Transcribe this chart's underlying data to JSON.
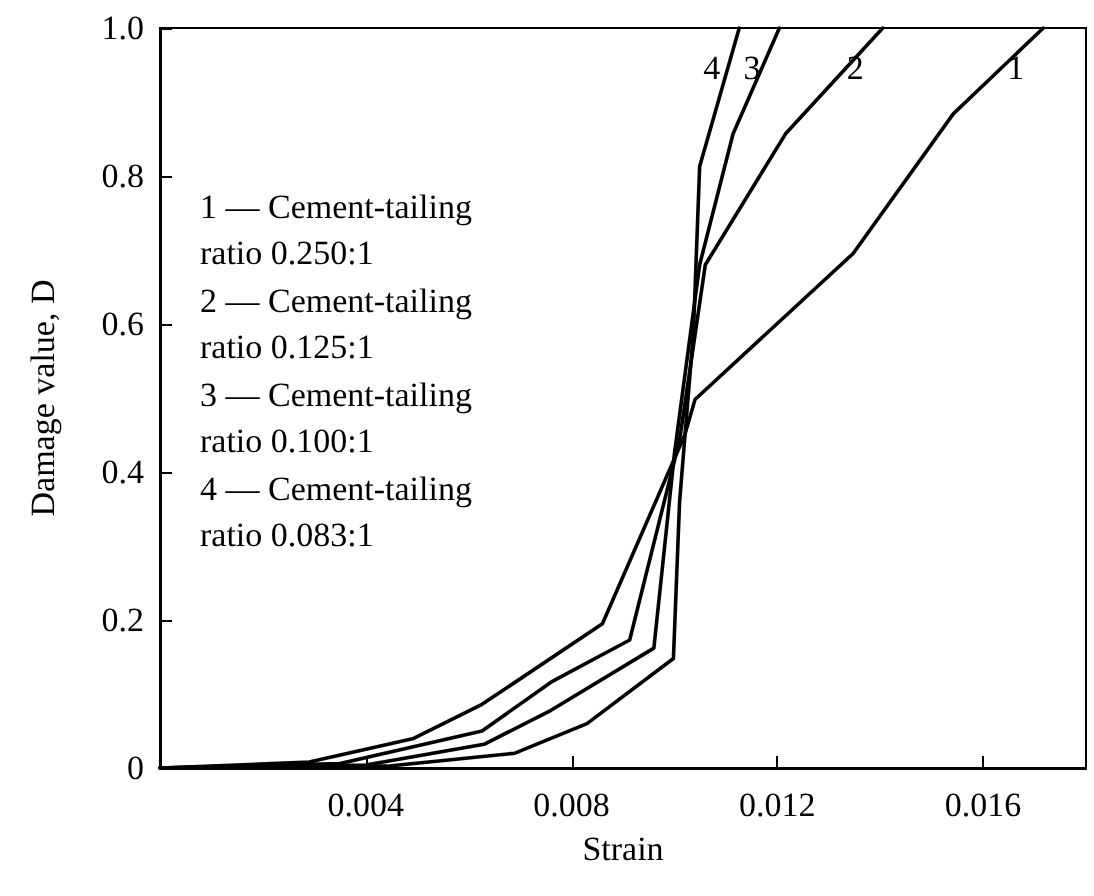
{
  "chart_data": {
    "type": "line",
    "xlabel": "Strain",
    "ylabel": "Damage value, D",
    "xlim": [
      0,
      0.018
    ],
    "xticks": [
      0.004,
      0.008,
      0.012,
      0.016
    ],
    "ylim": [
      0,
      1
    ],
    "yticks": [
      0,
      0.2,
      0.4,
      0.6,
      0.8,
      {
        "value": 1,
        "label": "1.0"
      }
    ],
    "grid": false,
    "marker": "none",
    "line_style": "solid",
    "series": [
      {
        "name": "1",
        "color": "#000000",
        "x": [
          0,
          0.0029,
          0.00493,
          0.00626,
          0.0086,
          0.0102,
          0.0104,
          0.01347,
          0.01542,
          0.01717
        ],
        "values": [
          0,
          0.008,
          0.04,
          0.086,
          0.195,
          0.45,
          0.498,
          0.695,
          0.884,
          1.0
        ]
      },
      {
        "name": "2",
        "color": "#000000",
        "x": [
          0,
          0.0035,
          0.00626,
          0.0076,
          0.00913,
          0.0101,
          0.0106,
          0.01216,
          0.01405
        ],
        "values": [
          0,
          0.006,
          0.05,
          0.116,
          0.173,
          0.443,
          0.68,
          0.857,
          1.0
        ]
      },
      {
        "name": "3",
        "color": "#000000",
        "x": [
          0,
          0.004,
          0.0063,
          0.0076,
          0.0096,
          0.01,
          0.01049,
          0.01114,
          0.01204
        ],
        "values": [
          0,
          0.004,
          0.032,
          0.078,
          0.162,
          0.425,
          0.68,
          0.857,
          1.0
        ]
      },
      {
        "name": "4",
        "color": "#000000",
        "x": [
          0,
          0.0045,
          0.0069,
          0.0083,
          0.00998,
          0.0101,
          0.01037,
          0.01049,
          0.01126
        ],
        "values": [
          0,
          0.003,
          0.02,
          0.06,
          0.148,
          0.36,
          0.59,
          0.813,
          1.0
        ]
      }
    ],
    "annotations": [
      "1 — Cement-tailing ratio 0.250:1",
      "2 — Cement-tailing ratio 0.125:1",
      "3 — Cement-tailing ratio 0.100:1",
      "4 — Cement-tailing ratio 0.083:1"
    ]
  }
}
